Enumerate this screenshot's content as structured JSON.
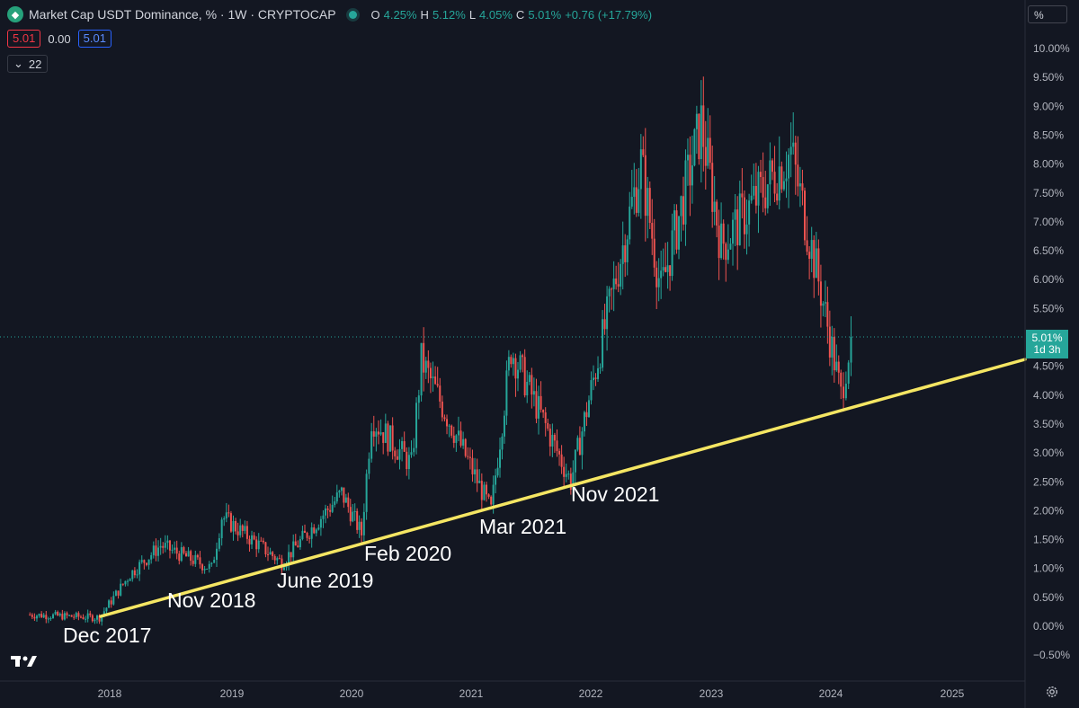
{
  "header": {
    "title": "Market Cap USDT Dominance, % · 1W · CRYPTOCAP",
    "ohlc": [
      {
        "k": "O",
        "v": "4.25%"
      },
      {
        "k": "H",
        "v": "5.12%"
      },
      {
        "k": "L",
        "v": "4.05%"
      },
      {
        "k": "C",
        "v": "5.01%"
      }
    ],
    "change": "+0.76 (+17.79%)"
  },
  "indicators": {
    "value_red": "5.01",
    "value_mid": "0.00",
    "value_blue": "5.01",
    "collapsed_count": "22"
  },
  "scale_mode": "%",
  "current_price": {
    "value": "5.01%",
    "countdown": "1d 3h"
  },
  "colors": {
    "up": "#26a69a",
    "down": "#ef5350",
    "trendline": "#f5e663",
    "background": "#131722"
  },
  "icons": [
    "tether-logo-icon",
    "live-status-icon",
    "chevron-down-icon",
    "tradingview-logo-icon",
    "gear-icon"
  ],
  "chart_data": {
    "type": "candlestick",
    "x_axis_labels": [
      "2018",
      "2019",
      "2020",
      "2021",
      "2022",
      "2023",
      "2024",
      "2025"
    ],
    "y_axis_labels": [
      "10.00%",
      "9.50%",
      "9.00%",
      "8.50%",
      "8.00%",
      "7.50%",
      "7.00%",
      "6.50%",
      "6.00%",
      "5.50%",
      "4.50%",
      "4.00%",
      "3.50%",
      "3.00%",
      "2.50%",
      "2.00%",
      "1.50%",
      "1.00%",
      "0.50%",
      "0.00%",
      "−0.50%"
    ],
    "ylim": [
      -0.5,
      10.0
    ],
    "approx_weekly_close_path": [
      {
        "date": "2017-05",
        "value": 0.2
      },
      {
        "date": "2017-12",
        "value": 0.15
      },
      {
        "date": "2018-03",
        "value": 0.9
      },
      {
        "date": "2018-06",
        "value": 1.4
      },
      {
        "date": "2018-11",
        "value": 1.0
      },
      {
        "date": "2018-12",
        "value": 1.9
      },
      {
        "date": "2019-06",
        "value": 1.1
      },
      {
        "date": "2019-12",
        "value": 2.3
      },
      {
        "date": "2020-02",
        "value": 1.6
      },
      {
        "date": "2020-03",
        "value": 3.6
      },
      {
        "date": "2020-07",
        "value": 2.8
      },
      {
        "date": "2020-08",
        "value": 4.6
      },
      {
        "date": "2021-03",
        "value": 2.0
      },
      {
        "date": "2021-05",
        "value": 4.8
      },
      {
        "date": "2021-11",
        "value": 2.5
      },
      {
        "date": "2022-06",
        "value": 8.0
      },
      {
        "date": "2022-08",
        "value": 5.8
      },
      {
        "date": "2022-12",
        "value": 8.7
      },
      {
        "date": "2023-02",
        "value": 6.6
      },
      {
        "date": "2023-09",
        "value": 8.2
      },
      {
        "date": "2023-12",
        "value": 5.8
      },
      {
        "date": "2024-02",
        "value": 4.0
      },
      {
        "date": "2024-03",
        "value": 5.01
      }
    ],
    "trendline": {
      "from": {
        "date": "2017-12",
        "value": 0.15
      },
      "to": {
        "date": "2025-09",
        "value": 4.6
      }
    },
    "annotations": [
      "Dec 2017",
      "Nov 2018",
      "June 2019",
      "Feb 2020",
      "Mar 2021",
      "Nov 2021"
    ]
  }
}
